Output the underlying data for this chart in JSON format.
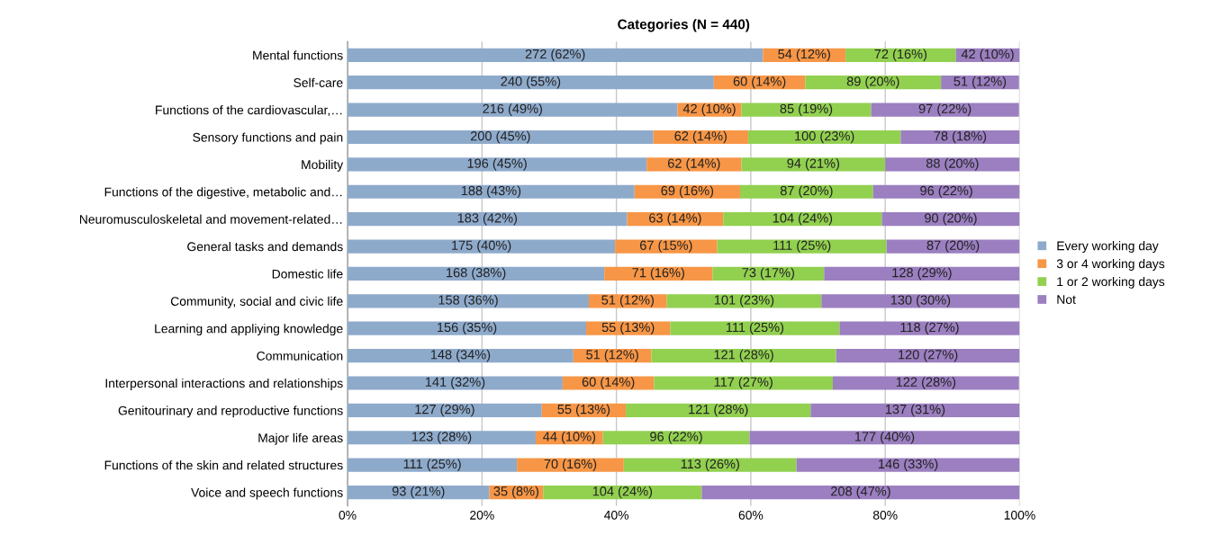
{
  "chart_data": {
    "type": "bar",
    "orientation": "horizontal",
    "stacked": true,
    "title": "Categories (N = 440)",
    "categories": [
      "Mental functions",
      "Self-care",
      "Functions of the cardiovascular,…",
      "Sensory functions and pain",
      "Mobility",
      "Functions of the digestive, metabolic and…",
      "Neuromusculoskeletal and movement-related…",
      "General tasks and demands",
      "Domestic life",
      "Community, social and civic life",
      "Learning and appliying knowledge",
      "Communication",
      "Interpersonal interactions and relationships",
      "Genitourinary and reproductive functions",
      "Major life areas",
      "Functions of the skin and related structures",
      "Voice and speech functions"
    ],
    "xlim": [
      0,
      100
    ],
    "xticks": [
      {
        "value": 0,
        "label": "0%"
      },
      {
        "value": 20,
        "label": "20%"
      },
      {
        "value": 40,
        "label": "40%"
      },
      {
        "value": 60,
        "label": "60%"
      },
      {
        "value": 80,
        "label": "80%"
      },
      {
        "value": 100,
        "label": "100%"
      }
    ],
    "grid": "x",
    "legend": "right",
    "series": [
      {
        "name": "Every working day",
        "color": "#8eaacb",
        "values": [
          61.8,
          54.5,
          49.1,
          45.5,
          44.5,
          42.7,
          41.6,
          39.8,
          38.2,
          35.9,
          35.5,
          33.6,
          32.0,
          28.9,
          28.0,
          25.2,
          21.1
        ],
        "value_labels": [
          "272 (62%)",
          "240 (55%)",
          "216 (49%)",
          "200 (45%)",
          "196 (45%)",
          "188 (43%)",
          "183 (42%)",
          "175 (40%)",
          "168 (38%)",
          "158 (36%)",
          "156 (35%)",
          "148 (34%)",
          "141 (32%)",
          "127 (29%)",
          "123 (28%)",
          "111 (25%)",
          "93 (21%)"
        ]
      },
      {
        "name": "3 or 4 working days",
        "color": "#f79646",
        "values": [
          12.3,
          13.6,
          9.5,
          14.1,
          14.1,
          15.7,
          14.3,
          15.2,
          16.1,
          11.6,
          12.5,
          11.6,
          13.6,
          12.5,
          10.0,
          15.9,
          8.0
        ],
        "value_labels": [
          "54 (12%)",
          "60 (14%)",
          "42 (10%)",
          "62 (14%)",
          "62 (14%)",
          "69 (16%)",
          "63 (14%)",
          "67 (15%)",
          "71 (16%)",
          "51 (12%)",
          "55 (13%)",
          "51 (12%)",
          "60 (14%)",
          "55 (13%)",
          "44 (10%)",
          "70 (16%)",
          "35 (8%)"
        ]
      },
      {
        "name": "1 or 2 working days",
        "color": "#92d050",
        "values": [
          16.4,
          20.2,
          19.3,
          22.7,
          21.4,
          19.8,
          23.6,
          25.2,
          16.6,
          23.0,
          25.2,
          27.5,
          26.6,
          27.5,
          21.8,
          25.7,
          23.6
        ],
        "value_labels": [
          "72 (16%)",
          "89 (20%)",
          "85 (19%)",
          "100 (23%)",
          "94 (21%)",
          "87 (20%)",
          "104 (24%)",
          "111 (25%)",
          "73 (17%)",
          "101 (23%)",
          "111 (25%)",
          "121 (28%)",
          "117 (27%)",
          "121 (28%)",
          "96 (22%)",
          "113 (26%)",
          "104 (24%)"
        ]
      },
      {
        "name": "Not",
        "color": "#9b7fc0",
        "values": [
          9.5,
          11.6,
          22.0,
          17.7,
          20.0,
          21.8,
          20.5,
          19.8,
          29.1,
          29.5,
          26.8,
          27.3,
          27.7,
          31.1,
          40.2,
          33.2,
          47.3
        ],
        "value_labels": [
          "42 (10%)",
          "51 (12%)",
          "97 (22%)",
          "78 (18%)",
          "88 (20%)",
          "96 (22%)",
          "90 (20%)",
          "87 (20%)",
          "128 (29%)",
          "130 (30%)",
          "118 (27%)",
          "120 (27%)",
          "122 (28%)",
          "137 (31%)",
          "177 (40%)",
          "146 (33%)",
          "208 (47%)"
        ]
      }
    ]
  }
}
